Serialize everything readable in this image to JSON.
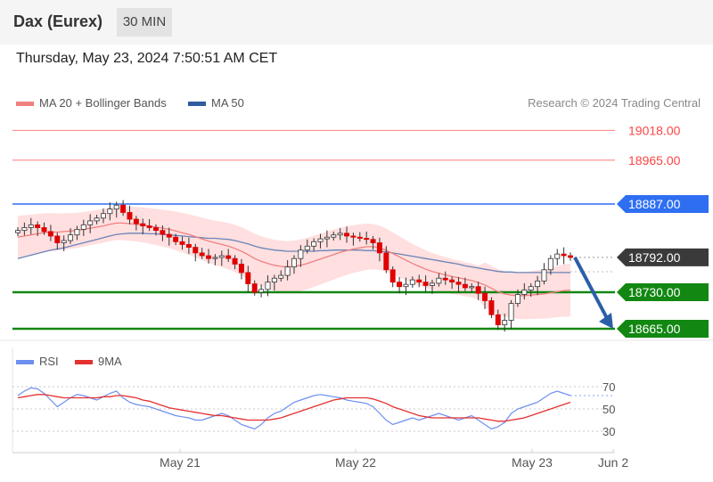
{
  "header": {
    "title": "Dax (Eurex)",
    "timeframe": "30 MIN"
  },
  "timestamp": "Thursday, May 23, 2024 7:50:51 AM CET",
  "source": "Research © 2024 Trading Central",
  "colors": {
    "resistance": "#ff4444",
    "pivot": "#2e6ff2",
    "support": "#128712",
    "candle": "#e00000",
    "bollinger": "#ffd4d4",
    "ma20": "#f08080",
    "ma50": "#6a83b8",
    "last": "#3a3a3a",
    "arrow": "#2a5fa8",
    "rsi": "#6d8ff0",
    "rsi_ma": "#e53030"
  },
  "chart_data": [
    {
      "type": "candlestick",
      "legend": [
        {
          "name": "MA 20 + Bollinger Bands",
          "color": "#f08080"
        },
        {
          "name": "MA 50",
          "color": "#2f5d9e"
        }
      ],
      "levels": [
        {
          "value": 19018.0,
          "label": "19018.00",
          "kind": "resistance"
        },
        {
          "value": 18965.0,
          "label": "18965.00",
          "kind": "resistance"
        },
        {
          "value": 18887.0,
          "label": "18887.00",
          "kind": "pivot"
        },
        {
          "value": 18792.0,
          "label": "18792.00",
          "kind": "last"
        },
        {
          "value": 18730.0,
          "label": "18730.00",
          "kind": "support"
        },
        {
          "value": 18665.0,
          "label": "18665.00",
          "kind": "support"
        }
      ],
      "projection": {
        "from": 18792.0,
        "to": 18665.0
      },
      "price_series": [
        18840,
        18845,
        18850,
        18845,
        18838,
        18830,
        18818,
        18822,
        18832,
        18842,
        18850,
        18857,
        18862,
        18870,
        18878,
        18885,
        18872,
        18860,
        18852,
        18848,
        18845,
        18840,
        18833,
        18828,
        18820,
        18815,
        18810,
        18800,
        18795,
        18790,
        18792,
        18795,
        18790,
        18780,
        18765,
        18745,
        18730,
        18735,
        18748,
        18755,
        18760,
        18775,
        18790,
        18805,
        18812,
        18820,
        18825,
        18828,
        18832,
        18835,
        18830,
        18828,
        18826,
        18824,
        18818,
        18800,
        18770,
        18748,
        18740,
        18744,
        18752,
        18748,
        18742,
        18746,
        18755,
        18752,
        18748,
        18744,
        18738,
        18740,
        18728,
        18715,
        18690,
        18672,
        18680,
        18710,
        18726,
        18734,
        18740,
        18750,
        18770,
        18790,
        18798,
        18795,
        18792
      ],
      "ma20": [
        18828,
        18830,
        18832,
        18834,
        18836,
        18837,
        18837,
        18838,
        18839,
        18840,
        18842,
        18844,
        18846,
        18848,
        18851,
        18853,
        18853,
        18852,
        18851,
        18850,
        18848,
        18846,
        18844,
        18842,
        18839,
        18836,
        18833,
        18829,
        18825,
        18821,
        18818,
        18815,
        18812,
        18808,
        18803,
        18797,
        18790,
        18785,
        18781,
        18778,
        18776,
        18775,
        18776,
        18778,
        18781,
        18785,
        18789,
        18793,
        18797,
        18801,
        18804,
        18807,
        18809,
        18811,
        18811,
        18809,
        18805,
        18799,
        18793,
        18787,
        18781,
        18776,
        18771,
        18767,
        18764,
        18761,
        18758,
        18756,
        18753,
        18751,
        18747,
        18743,
        18737,
        18731,
        18727,
        18725,
        18724,
        18724,
        18725,
        18726,
        18727,
        18729,
        18731,
        18733,
        18734
      ],
      "ma50": [
        18790,
        18793,
        18796,
        18799,
        18802,
        18805,
        18807,
        18809,
        18812,
        18815,
        18818,
        18821,
        18824,
        18827,
        18830,
        18833,
        18834,
        18835,
        18835,
        18835,
        18834,
        18834,
        18833,
        18832,
        18831,
        18830,
        18829,
        18828,
        18827,
        18826,
        18826,
        18825,
        18824,
        18822,
        18819,
        18816,
        18812,
        18809,
        18807,
        18805,
        18804,
        18803,
        18803,
        18803,
        18803,
        18803,
        18804,
        18804,
        18805,
        18805,
        18805,
        18805,
        18805,
        18804,
        18804,
        18803,
        18802,
        18800,
        18798,
        18796,
        18794,
        18792,
        18790,
        18788,
        18786,
        18784,
        18782,
        18780,
        18777,
        18775,
        18773,
        18771,
        18769,
        18767,
        18766,
        18766,
        18765,
        18765,
        18765,
        18765,
        18765,
        18765,
        18765,
        18765,
        18765
      ],
      "x_ticks": [
        "May 21",
        "May 22",
        "May 23",
        "Jun 2"
      ]
    },
    {
      "type": "line",
      "legend": [
        {
          "name": "RSI",
          "color": "#6d8ff0"
        },
        {
          "name": "9MA",
          "color": "#e53030"
        }
      ],
      "ylim": [
        20,
        80
      ],
      "y_ticks": [
        70,
        50,
        30
      ],
      "rsi": [
        62,
        66,
        69,
        68,
        64,
        58,
        52,
        56,
        60,
        63,
        62,
        60,
        58,
        61,
        64,
        66,
        60,
        56,
        54,
        53,
        52,
        50,
        48,
        46,
        44,
        43,
        42,
        40,
        40,
        42,
        44,
        46,
        44,
        40,
        36,
        34,
        32,
        36,
        42,
        46,
        48,
        52,
        56,
        58,
        60,
        62,
        63,
        62,
        61,
        60,
        58,
        57,
        56,
        55,
        52,
        46,
        40,
        36,
        38,
        40,
        42,
        40,
        42,
        44,
        46,
        44,
        42,
        40,
        42,
        44,
        40,
        36,
        32,
        34,
        38,
        46,
        50,
        52,
        54,
        56,
        60,
        64,
        66,
        64,
        62
      ],
      "ma9": [
        60,
        61,
        62,
        63,
        63,
        62,
        61,
        60,
        60,
        60,
        60,
        60,
        60,
        61,
        61,
        62,
        62,
        61,
        60,
        58,
        57,
        55,
        53,
        51,
        50,
        49,
        48,
        47,
        46,
        45,
        44,
        44,
        43,
        42,
        41,
        40,
        40,
        40,
        40,
        41,
        42,
        44,
        46,
        48,
        50,
        52,
        54,
        56,
        58,
        59,
        60,
        60,
        60,
        60,
        59,
        57,
        55,
        52,
        50,
        48,
        46,
        44,
        43,
        42,
        42,
        42,
        42,
        42,
        42,
        42,
        42,
        41,
        40,
        39,
        39,
        40,
        41,
        42,
        44,
        46,
        48,
        50,
        52,
        54,
        56
      ]
    }
  ]
}
